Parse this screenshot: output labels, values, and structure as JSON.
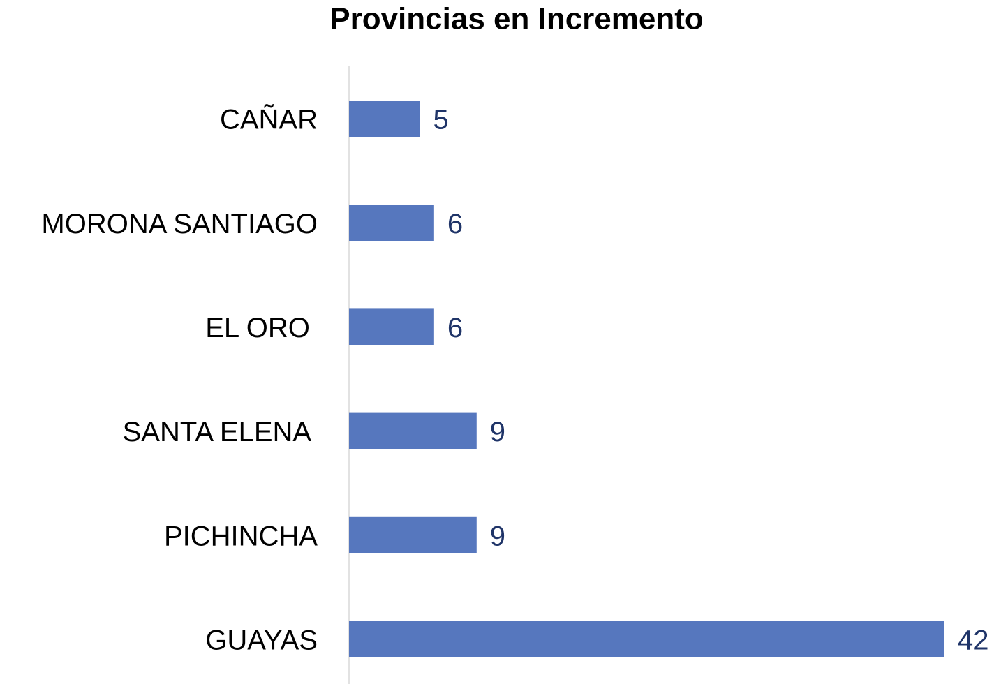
{
  "chart_data": {
    "type": "barh",
    "title": "Provincias en Incremento",
    "categories": [
      "CAÑAR",
      "MORONA SANTIAGO",
      "EL ORO ",
      "SANTA ELENA ",
      "PICHINCHA",
      "GUAYAS"
    ],
    "values": [
      5,
      6,
      6,
      9,
      9,
      42
    ],
    "color": "#5677be"
  }
}
